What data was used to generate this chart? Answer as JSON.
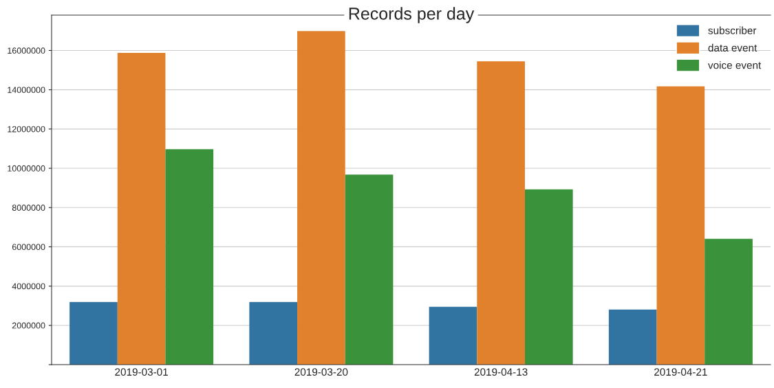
{
  "chart_data": {
    "type": "bar",
    "title": "Records per day",
    "categories": [
      "2019-03-01",
      "2019-03-20",
      "2019-04-13",
      "2019-04-21"
    ],
    "series": [
      {
        "name": "subscriber",
        "color": "#3274a1",
        "values": [
          3190000,
          3190000,
          2950000,
          2810000
        ]
      },
      {
        "name": "data event",
        "color": "#e1812c",
        "values": [
          15880000,
          16990000,
          15450000,
          14170000
        ]
      },
      {
        "name": "voice event",
        "color": "#3a923a",
        "values": [
          10970000,
          9680000,
          8930000,
          6410000
        ]
      }
    ],
    "ylim": [
      0,
      17800000
    ],
    "yticks": [
      {
        "value": 0,
        "label": null
      },
      2000000,
      4000000,
      6000000,
      8000000,
      10000000,
      12000000,
      14000000,
      16000000
    ],
    "grid": "y",
    "legend": "top right"
  }
}
